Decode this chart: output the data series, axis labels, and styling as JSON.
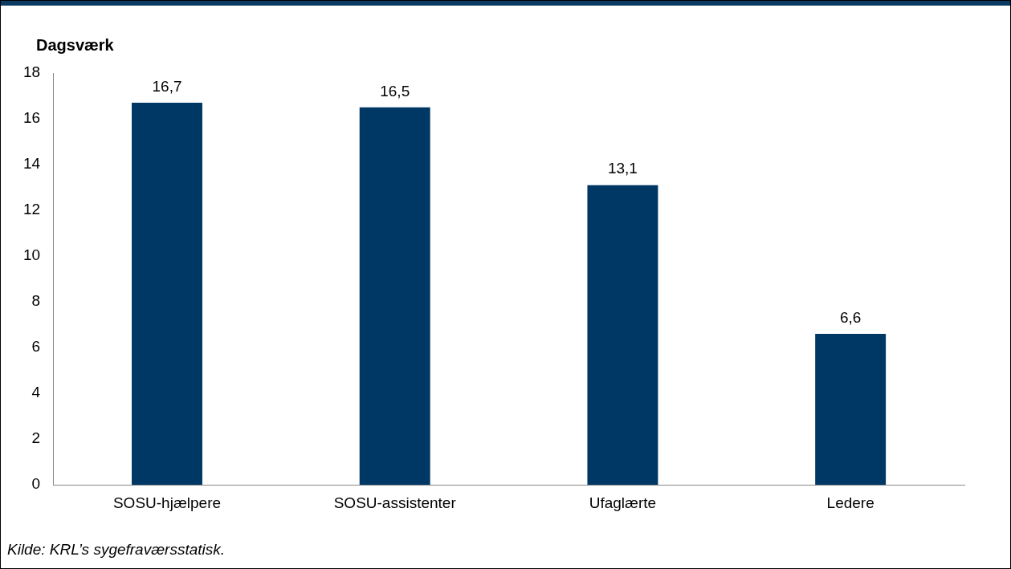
{
  "chart_data": {
    "type": "bar",
    "ylabel": "Dagsværk",
    "categories": [
      "SOSU-hjælpere",
      "SOSU-assistenter",
      "Ufaglærte",
      "Ledere"
    ],
    "values": [
      16.7,
      16.5,
      13.1,
      6.6
    ],
    "value_labels": [
      "16,7",
      "16,5",
      "13,1",
      "6,6"
    ],
    "color": "#003865",
    "ylim": [
      0,
      18
    ],
    "yticks": [
      0,
      2,
      4,
      6,
      8,
      10,
      12,
      14,
      16,
      18
    ],
    "grid": false,
    "legend": false,
    "annotations": [
      "Kilde: KRL’s sygefraværsstatisk."
    ]
  }
}
